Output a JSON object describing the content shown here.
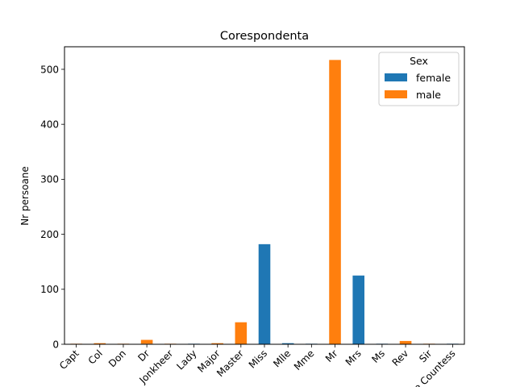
{
  "chart_data": {
    "type": "bar",
    "title": "Corespondenta",
    "xlabel": "",
    "ylabel": "Nr persoane",
    "ylim": [
      0,
      541
    ],
    "yticks": [
      0,
      100,
      200,
      300,
      400,
      500
    ],
    "categories": [
      "Capt",
      "Col",
      "Don",
      "Dr",
      "Jonkheer",
      "Lady",
      "Major",
      "Master",
      "Miss",
      "Mlle",
      "Mme",
      "Mr",
      "Mrs",
      "Ms",
      "Rev",
      "Sir",
      "the Countess"
    ],
    "legend": {
      "title": "Sex",
      "placement": "top-right"
    },
    "series": [
      {
        "name": "female",
        "color": "#1f77b4",
        "values": [
          0,
          0,
          0,
          1,
          0,
          1,
          0,
          0,
          182,
          2,
          1,
          0,
          125,
          1,
          0,
          0,
          1
        ]
      },
      {
        "name": "male",
        "color": "#ff7f0e",
        "values": [
          1,
          2,
          1,
          7,
          1,
          0,
          2,
          40,
          0,
          0,
          0,
          517,
          0,
          0,
          6,
          1,
          0
        ]
      }
    ]
  }
}
